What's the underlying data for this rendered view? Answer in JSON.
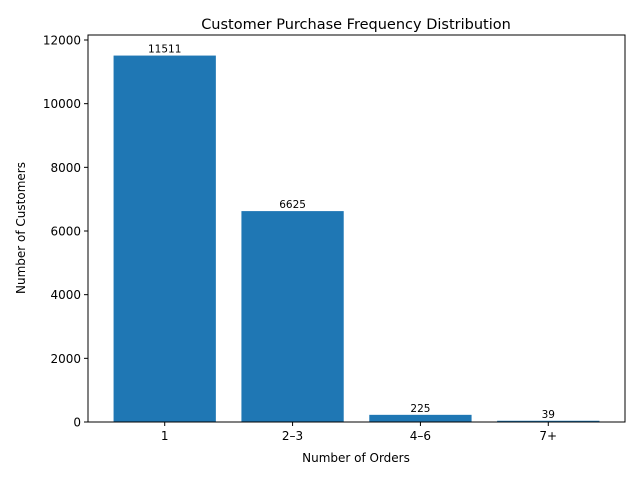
{
  "chart_data": {
    "type": "bar",
    "title": "Customer Purchase Frequency Distribution",
    "xlabel": "Number of Orders",
    "ylabel": "Number of Customers",
    "categories": [
      "1",
      "2–3",
      "4–6",
      "7+"
    ],
    "values": [
      11511,
      6625,
      225,
      39
    ],
    "data_labels": [
      "11511",
      "6625",
      "225",
      "39"
    ],
    "ylim": [
      0,
      12000
    ],
    "yticks": [
      0,
      2000,
      4000,
      6000,
      8000,
      10000,
      12000
    ],
    "ytick_labels": [
      "0",
      "2000",
      "4000",
      "6000",
      "8000",
      "10000",
      "12000"
    ],
    "grid": false,
    "legend": null,
    "bar_color": "#1f77b4"
  }
}
